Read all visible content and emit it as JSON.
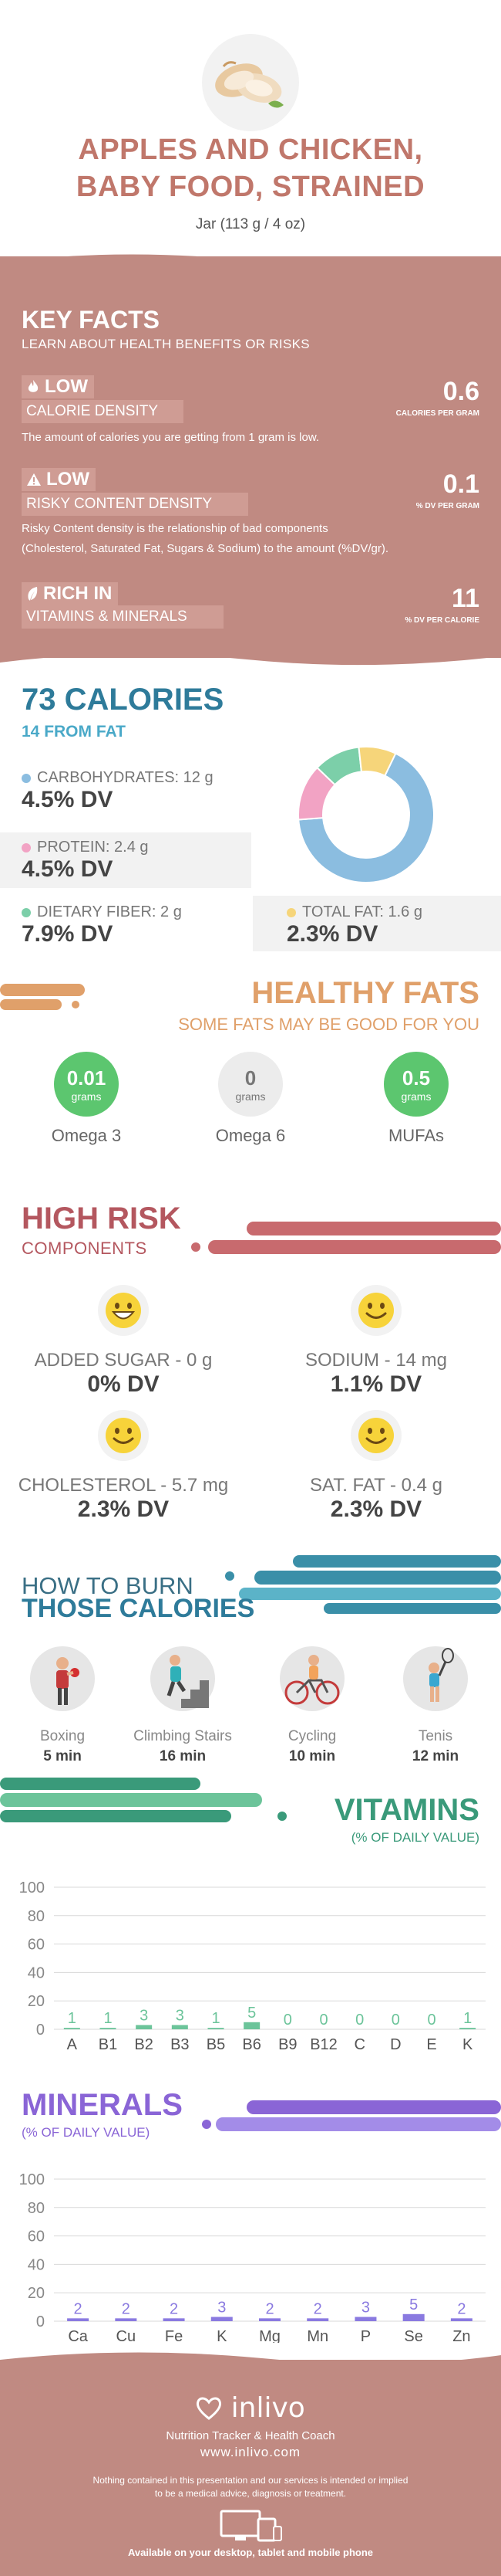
{
  "header": {
    "title_line1": "APPLES AND CHICKEN,",
    "title_line2": "BABY FOOD, STRAINED",
    "serving": "Jar (113 g / 4 oz)"
  },
  "key_facts": {
    "title": "KEY FACTS",
    "subtitle": "LEARN ABOUT HEALTH BENEFITS OR RISKS",
    "items": [
      {
        "tag": "LOW",
        "label": "CALORIE DENSITY",
        "value": "0.6",
        "unit": "CALORIES PER GRAM",
        "description": "The amount of calories you are getting from 1 gram is low.",
        "icon": "fire-icon"
      },
      {
        "tag": "LOW",
        "label": "RISKY CONTENT DENSITY",
        "value": "0.1",
        "unit": "% DV PER GRAM",
        "description_line1": "Risky Content density is the relationship of bad components",
        "description_line2": "(Cholesterol, Saturated Fat, Sugars & Sodium) to the amount (%DV/gr).",
        "icon": "warning-icon"
      },
      {
        "tag": "RICH IN",
        "label": "VITAMINS & MINERALS",
        "value": "11",
        "unit": "% DV PER CALORIE",
        "icon": "leaf-icon"
      }
    ]
  },
  "calories": {
    "title": "73 CALORIES",
    "from_fat": "14 FROM FAT",
    "nutrients": [
      {
        "label": "CARBOHYDRATES: 12 g",
        "dv": "4.5% DV",
        "color": "#8bbde0"
      },
      {
        "label": "PROTEIN: 2.4 g",
        "dv": "4.5% DV",
        "color": "#f2a3c4"
      },
      {
        "label": "DIETARY FIBER: 2 g",
        "dv": "7.9% DV",
        "color": "#7ccfa9"
      },
      {
        "label": "TOTAL FAT: 1.6 g",
        "dv": "2.3% DV",
        "color": "#f6d57a"
      }
    ]
  },
  "healthy_fats": {
    "title": "HEALTHY FATS",
    "subtitle": "SOME FATS MAY BE GOOD FOR YOU",
    "items": [
      {
        "value": "0.01",
        "unit": "grams",
        "label": "Omega 3",
        "color": "#5cc66f"
      },
      {
        "value": "0",
        "unit": "grams",
        "label": "Omega 6",
        "color": "#e8e8e8"
      },
      {
        "value": "0.5",
        "unit": "grams",
        "label": "MUFAs",
        "color": "#5cc66f"
      }
    ]
  },
  "high_risk": {
    "title": "HIGH RISK",
    "subtitle": "COMPONENTS",
    "items": [
      {
        "label": "ADDED SUGAR - 0 g",
        "dv": "0% DV",
        "icon": "happy-face-icon"
      },
      {
        "label": "SODIUM - 14 mg",
        "dv": "1.1% DV",
        "icon": "smile-face-icon"
      },
      {
        "label": "CHOLESTEROL - 5.7 mg",
        "dv": "2.3% DV",
        "icon": "smile-face-icon"
      },
      {
        "label": "SAT. FAT - 0.4 g",
        "dv": "2.3% DV",
        "icon": "smile-face-icon"
      }
    ]
  },
  "burn": {
    "title_line1": "HOW TO BURN",
    "title_line2": "THOSE CALORIES",
    "activities": [
      {
        "label": "Boxing",
        "time": "5 min",
        "icon": "boxing-icon"
      },
      {
        "label": "Climbing Stairs",
        "time": "16 min",
        "icon": "stairs-icon"
      },
      {
        "label": "Cycling",
        "time": "10 min",
        "icon": "cycling-icon"
      },
      {
        "label": "Tenis",
        "time": "12 min",
        "icon": "tennis-icon"
      }
    ]
  },
  "vitamins": {
    "title": "VITAMINS",
    "subtitle": "(% OF DAILY VALUE)"
  },
  "minerals": {
    "title": "MINERALS",
    "subtitle": "(% OF DAILY VALUE)"
  },
  "chart_data": [
    {
      "type": "bar",
      "title": "VITAMINS",
      "categories": [
        "A",
        "B1",
        "B2",
        "B3",
        "B5",
        "B6",
        "B9",
        "B12",
        "C",
        "D",
        "E",
        "K"
      ],
      "values": [
        1,
        1,
        3,
        3,
        1,
        5,
        0,
        0,
        0,
        0,
        0,
        1
      ],
      "yticks": [
        0,
        20,
        40,
        60,
        80,
        100
      ],
      "ylim": [
        0,
        100
      ],
      "grid": true,
      "color": "#6cc49a"
    },
    {
      "type": "bar",
      "title": "MINERALS",
      "categories": [
        "Ca",
        "Cu",
        "Fe",
        "K",
        "Mg",
        "Mn",
        "P",
        "Se",
        "Zn"
      ],
      "values": [
        2,
        2,
        2,
        3,
        2,
        2,
        3,
        5,
        2
      ],
      "yticks": [
        0,
        20,
        40,
        60,
        80,
        100
      ],
      "ylim": [
        0,
        100
      ],
      "grid": true,
      "color": "#8a7ae0"
    }
  ],
  "footer": {
    "brand": "inlivo",
    "tagline": "Nutrition Tracker & Health Coach",
    "url": "www.inlivo.com",
    "disclaimer_line1": "Nothing contained in this presentation and our services is intended or implied",
    "disclaimer_line2": "to be a medical advice, diagnosis or treatment.",
    "available": "Available on your desktop, tablet and mobile phone"
  }
}
